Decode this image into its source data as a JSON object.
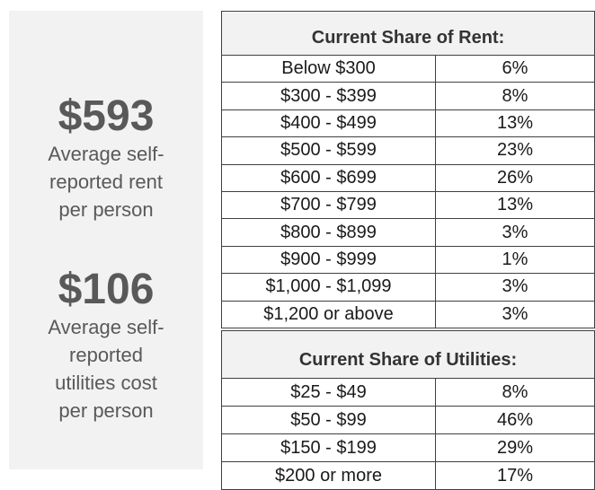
{
  "sidebar": {
    "stats": [
      {
        "value": "$593",
        "label_lines": [
          "Average self-",
          "reported rent",
          "per person"
        ]
      },
      {
        "value": "$106",
        "label_lines": [
          "Average self-",
          "reported",
          "utilities cost",
          "per person"
        ]
      }
    ]
  },
  "tables": [
    {
      "title": "Current Share of Rent:",
      "rows": [
        [
          "Below $300",
          "6%"
        ],
        [
          "$300 - $399",
          "8%"
        ],
        [
          "$400 - $499",
          "13%"
        ],
        [
          "$500 - $599",
          "23%"
        ],
        [
          "$600 - $699",
          "26%"
        ],
        [
          "$700 - $799",
          "13%"
        ],
        [
          "$800 - $899",
          "3%"
        ],
        [
          "$900 - $999",
          "1%"
        ],
        [
          "$1,000 - $1,099",
          "3%"
        ],
        [
          "$1,200 or above",
          "3%"
        ]
      ]
    },
    {
      "title": "Current Share of Utilities:",
      "rows": [
        [
          "$25 - $49",
          "8%"
        ],
        [
          "$50 - $99",
          "46%"
        ],
        [
          "$150 - $199",
          "29%"
        ],
        [
          "$200 or more",
          "17%"
        ]
      ]
    }
  ]
}
